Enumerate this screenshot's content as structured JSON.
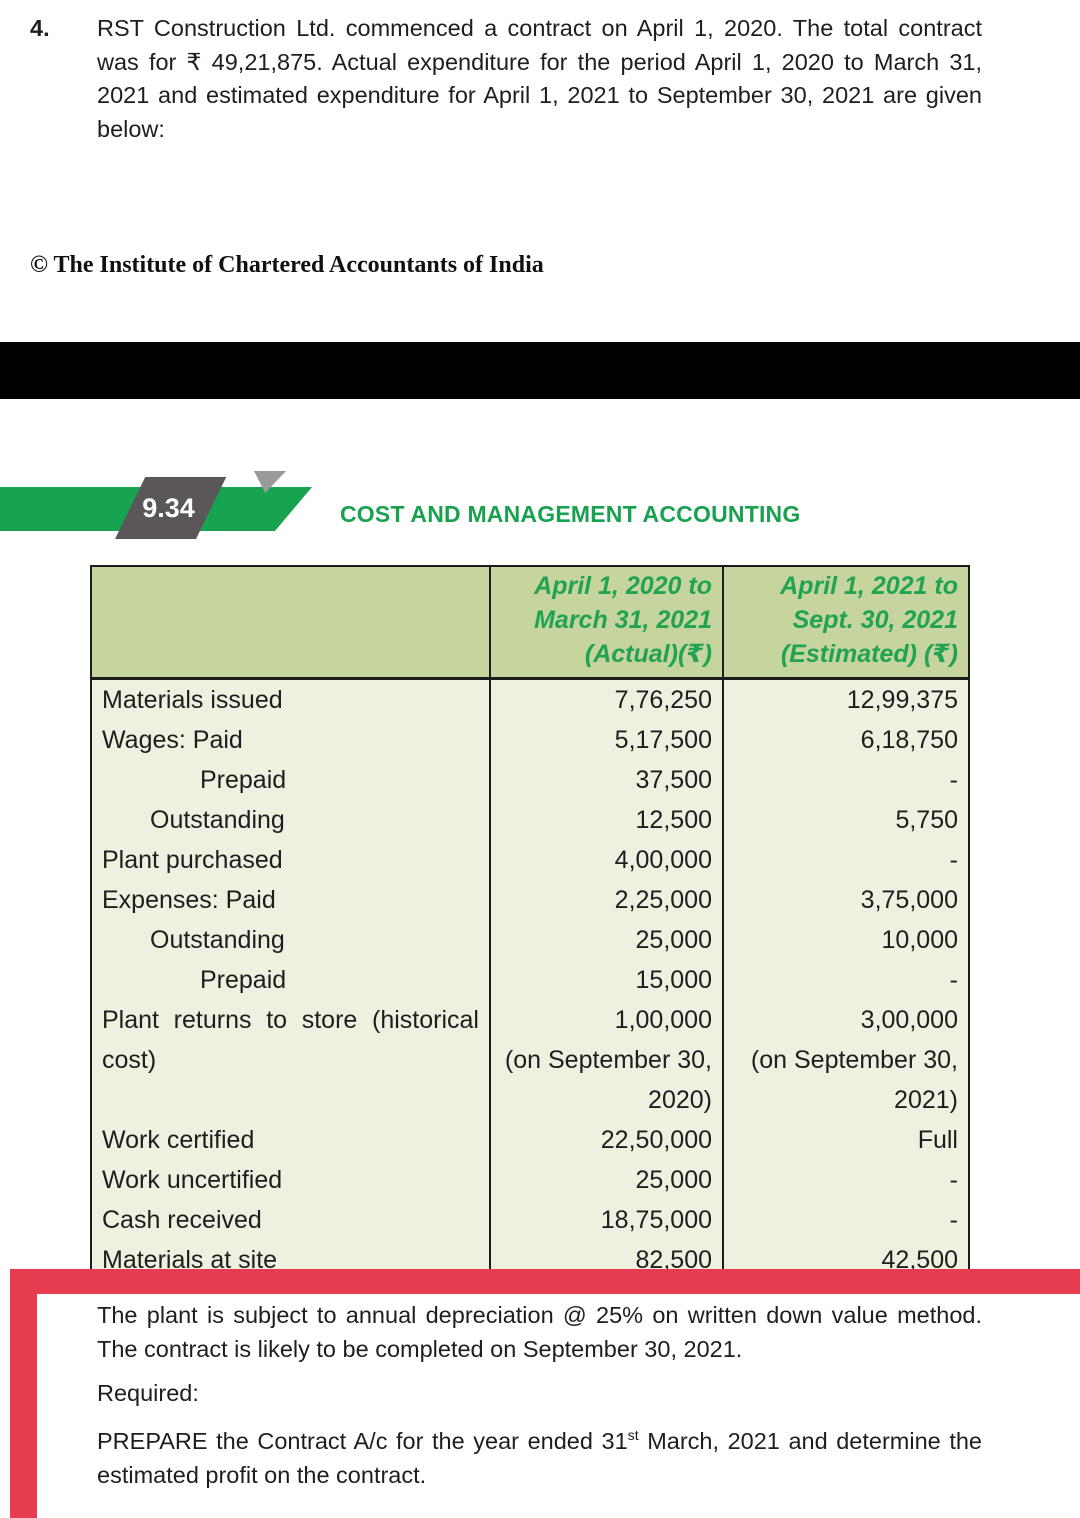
{
  "question": {
    "number": "4.",
    "text": "RST Construction Ltd. commenced a contract on April 1, 2020. The total contract was for ₹ 49,21,875. Actual expenditure for the period April 1, 2020 to March 31, 2021 and estimated expenditure for April 1, 2021 to September 30, 2021 are given below:"
  },
  "copyright": "© The Institute of Chartered Accountants of India",
  "banner": {
    "page_number": "9.34",
    "title": "COST AND MANAGEMENT ACCOUNTING"
  },
  "table": {
    "header": {
      "period1": [
        "April 1, 2020 to",
        "March 31, 2021",
        "(Actual)(₹)"
      ],
      "period2": [
        "April 1, 2021 to",
        "Sept. 30, 2021",
        "(Estimated) (₹)"
      ]
    },
    "rows": [
      {
        "label": "Materials issued",
        "indent": 0,
        "actual": [
          "7,76,250"
        ],
        "estimated": [
          "12,99,375"
        ]
      },
      {
        "label": "Wages: Paid",
        "indent": 0,
        "actual": [
          "5,17,500"
        ],
        "estimated": [
          "6,18,750"
        ]
      },
      {
        "label": "Prepaid",
        "indent": 2,
        "actual": [
          "37,500"
        ],
        "estimated": [
          "-"
        ]
      },
      {
        "label": "Outstanding",
        "indent": 1,
        "actual": [
          "12,500"
        ],
        "estimated": [
          "5,750"
        ]
      },
      {
        "label": "Plant purchased",
        "indent": 0,
        "actual": [
          "4,00,000"
        ],
        "estimated": [
          "-"
        ]
      },
      {
        "label": "Expenses: Paid",
        "indent": 0,
        "actual": [
          "2,25,000"
        ],
        "estimated": [
          "3,75,000"
        ]
      },
      {
        "label": "Outstanding",
        "indent": 1,
        "actual": [
          "25,000"
        ],
        "estimated": [
          "10,000"
        ]
      },
      {
        "label": "Prepaid",
        "indent": 2,
        "actual": [
          "15,000"
        ],
        "estimated": [
          "-"
        ]
      },
      {
        "label": "Plant returns to store (historical cost)",
        "indent": 0,
        "actual": [
          "1,00,000",
          "(on September 30,",
          "2020)"
        ],
        "estimated": [
          "3,00,000",
          "(on September 30,",
          "2021)"
        ]
      },
      {
        "label": "Work certified",
        "indent": 0,
        "actual": [
          "22,50,000"
        ],
        "estimated": [
          "Full"
        ]
      },
      {
        "label": "Work uncertified",
        "indent": 0,
        "actual": [
          "25,000"
        ],
        "estimated": [
          "-"
        ]
      },
      {
        "label": "Cash received",
        "indent": 0,
        "actual": [
          "18,75,000"
        ],
        "estimated": [
          "-"
        ]
      },
      {
        "label": "Materials at site",
        "indent": 0,
        "actual": [
          "82,500"
        ],
        "estimated": [
          "42,500"
        ]
      }
    ]
  },
  "note": {
    "depreciation": "The plant is subject to annual depreciation @ 25% on written down value method. The contract is likely to be completed on September 30, 2021.",
    "required_label": "Required:",
    "requirement_before": "PREPARE the Contract A/c for the year ended 31",
    "requirement_sup": "st",
    "requirement_after": " March, 2021 and determine the estimated profit on the contract."
  },
  "colors": {
    "accent_green": "#17a350",
    "badge_gray": "#5b5658",
    "table_header_bg": "#c6d49e",
    "table_body_bg": "#edf1e0",
    "table_border": "#1c1c1c",
    "frame_red": "#e73b50",
    "divider_black": "#000000"
  }
}
